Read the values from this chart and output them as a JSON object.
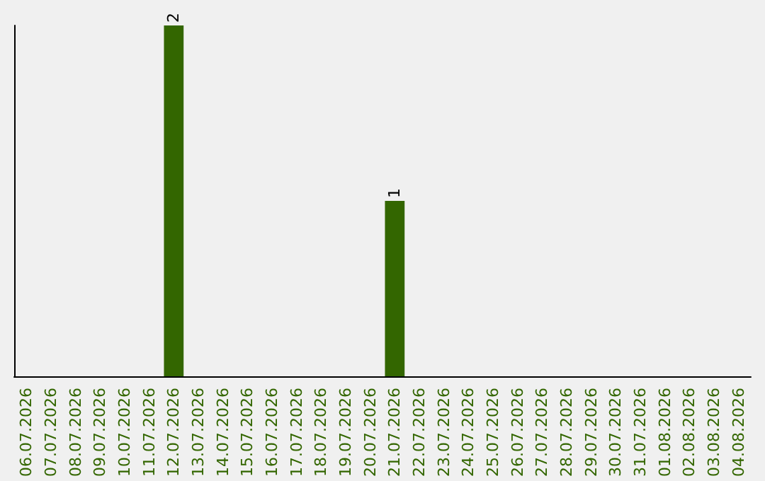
{
  "chart_data": {
    "type": "bar",
    "categories": [
      "06.07.2026",
      "07.07.2026",
      "08.07.2026",
      "09.07.2026",
      "10.07.2026",
      "11.07.2026",
      "12.07.2026",
      "13.07.2026",
      "14.07.2026",
      "15.07.2026",
      "16.07.2026",
      "17.07.2026",
      "18.07.2026",
      "19.07.2026",
      "20.07.2026",
      "21.07.2026",
      "22.07.2026",
      "23.07.2026",
      "24.07.2026",
      "25.07.2026",
      "26.07.2026",
      "27.07.2026",
      "28.07.2026",
      "29.07.2026",
      "30.07.2026",
      "31.07.2026",
      "01.08.2026",
      "02.08.2026",
      "03.08.2026",
      "04.08.2026"
    ],
    "values": [
      0,
      0,
      0,
      0,
      0,
      0,
      2,
      0,
      0,
      0,
      0,
      0,
      0,
      0,
      0,
      1,
      0,
      0,
      0,
      0,
      0,
      0,
      0,
      0,
      0,
      0,
      0,
      0,
      0,
      0
    ],
    "value_labels": [
      null,
      null,
      null,
      null,
      null,
      null,
      "2",
      null,
      null,
      null,
      null,
      null,
      null,
      null,
      null,
      "1",
      null,
      null,
      null,
      null,
      null,
      null,
      null,
      null,
      null,
      null,
      null,
      null,
      null,
      null
    ],
    "color": "#336600",
    "tick_labels": "x",
    "grid": false
  }
}
